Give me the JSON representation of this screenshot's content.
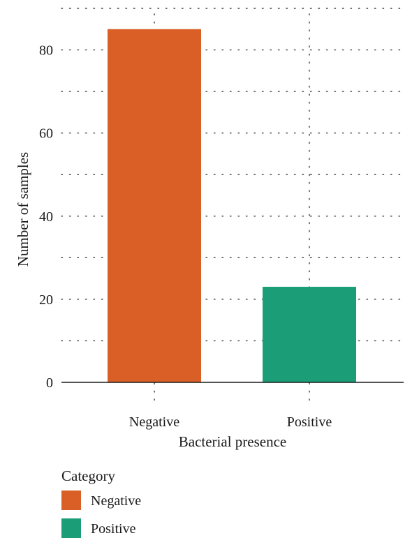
{
  "chart_data": {
    "type": "bar",
    "categories": [
      "Negative",
      "Positive"
    ],
    "values": [
      85,
      23
    ],
    "colors": {
      "Negative": "#d95f26",
      "Positive": "#1b9e77"
    },
    "xlabel": "Bacterial presence",
    "ylabel": "Number of samples",
    "ylim": [
      0,
      90
    ],
    "yticks": [
      0,
      20,
      40,
      60,
      80
    ],
    "ytick_labels": [
      "0",
      "20",
      "40",
      "60",
      "80"
    ],
    "grid": "dotted, major and minor",
    "legend": {
      "title": "Category",
      "placement": "bottom-left",
      "items": [
        {
          "label": "Negative",
          "color": "#d95f26"
        },
        {
          "label": "Positive",
          "color": "#1b9e77"
        }
      ]
    }
  }
}
